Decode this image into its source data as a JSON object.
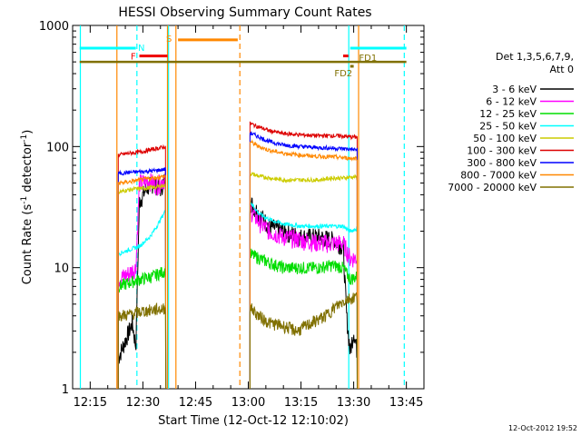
{
  "chart_data": {
    "type": "line",
    "title": "HESSI Observing Summary Count Rates",
    "xlabel": "Start Time (12-Oct-12 12:10:02)",
    "ylabel_main": "Count Rate (s",
    "ylabel_sup1": "-1",
    "ylabel_mid": " detector",
    "ylabel_sup2": "-1",
    "ylabel_end": ")",
    "y_scale": "log",
    "ylim": [
      1,
      1000
    ],
    "xlim_minutes": [
      12.0,
      235.0
    ],
    "x_ticks": [
      {
        "minute": 15,
        "label": "12:15"
      },
      {
        "minute": 30,
        "label": "12:30"
      },
      {
        "minute": 45,
        "label": "12:45"
      },
      {
        "minute": 60,
        "label": "13:00"
      },
      {
        "minute": 75,
        "label": "13:15"
      },
      {
        "minute": 90,
        "label": "13:30"
      },
      {
        "minute": 105,
        "label": "13:45"
      }
    ],
    "y_ticks": [
      {
        "value": 1,
        "label": "1"
      },
      {
        "value": 10,
        "label": "10"
      },
      {
        "value": 100,
        "label": "100"
      },
      {
        "value": 1000,
        "label": "1000"
      }
    ],
    "legend_title_1": "Det 1,3,5,6,7,9,",
    "legend_title_2": "Att 0",
    "legend_placement": "right",
    "series": [
      {
        "name": "3 - 6 keV",
        "color": "#000000",
        "seg1": [
          [
            23,
            1.8
          ],
          [
            25,
            2.5
          ],
          [
            27,
            3.5
          ],
          [
            28,
            2.2
          ],
          [
            29,
            35
          ],
          [
            31,
            45
          ],
          [
            33,
            50
          ],
          [
            35,
            45
          ],
          [
            36.5,
            55
          ]
        ],
        "seg2": [
          [
            60.5,
            35
          ],
          [
            63,
            28
          ],
          [
            66,
            22
          ],
          [
            70,
            20
          ],
          [
            75,
            18
          ],
          [
            80,
            18
          ],
          [
            84,
            17
          ],
          [
            87,
            15
          ],
          [
            88,
            4
          ],
          [
            89,
            2
          ],
          [
            90,
            3
          ],
          [
            91,
            2
          ]
        ]
      },
      {
        "name": "6 - 12 keV",
        "color": "#ff00ff",
        "seg1": [
          [
            23,
            8
          ],
          [
            26,
            9
          ],
          [
            28,
            10
          ],
          [
            29,
            50
          ],
          [
            32,
            52
          ],
          [
            34,
            48
          ],
          [
            36.5,
            55
          ]
        ],
        "seg2": [
          [
            60.5,
            30
          ],
          [
            63,
            24
          ],
          [
            66,
            20
          ],
          [
            70,
            18
          ],
          [
            75,
            17
          ],
          [
            80,
            16
          ],
          [
            84,
            16
          ],
          [
            87,
            16
          ],
          [
            89,
            12
          ],
          [
            91,
            12
          ]
        ]
      },
      {
        "name": "12 - 25 keV",
        "color": "#00dd00",
        "seg1": [
          [
            23,
            7
          ],
          [
            26,
            7.5
          ],
          [
            29,
            8
          ],
          [
            33,
            8.5
          ],
          [
            36.5,
            9.5
          ]
        ],
        "seg2": [
          [
            60.5,
            13
          ],
          [
            63,
            12
          ],
          [
            66,
            11
          ],
          [
            70,
            10
          ],
          [
            75,
            10
          ],
          [
            80,
            10
          ],
          [
            84,
            10.5
          ],
          [
            87,
            10
          ],
          [
            89,
            8
          ],
          [
            91,
            8.5
          ]
        ]
      },
      {
        "name": "25 - 50 keV",
        "color": "#00ffff",
        "seg1": [
          [
            23,
            13
          ],
          [
            26,
            14
          ],
          [
            29,
            15
          ],
          [
            32,
            18
          ],
          [
            34,
            22
          ],
          [
            36.5,
            30
          ]
        ],
        "seg2": [
          [
            60.5,
            35
          ],
          [
            63,
            28
          ],
          [
            66,
            25
          ],
          [
            70,
            23
          ],
          [
            75,
            22
          ],
          [
            80,
            22
          ],
          [
            84,
            22
          ],
          [
            87,
            22
          ],
          [
            89,
            20
          ],
          [
            91,
            21
          ]
        ]
      },
      {
        "name": "50 - 100 keV",
        "color": "#cccc00",
        "seg1": [
          [
            23,
            42
          ],
          [
            26,
            44
          ],
          [
            29,
            45
          ],
          [
            33,
            46
          ],
          [
            36.5,
            48
          ]
        ],
        "seg2": [
          [
            60.5,
            60
          ],
          [
            63,
            57
          ],
          [
            66,
            55
          ],
          [
            70,
            53
          ],
          [
            75,
            53
          ],
          [
            80,
            53
          ],
          [
            84,
            55
          ],
          [
            87,
            55
          ],
          [
            89,
            56
          ],
          [
            91,
            56
          ]
        ]
      },
      {
        "name": "100 - 300 keV",
        "color": "#dd0000",
        "seg1": [
          [
            23,
            85
          ],
          [
            26,
            88
          ],
          [
            29,
            90
          ],
          [
            33,
            95
          ],
          [
            36.5,
            100
          ]
        ],
        "seg2": [
          [
            60.5,
            155
          ],
          [
            63,
            145
          ],
          [
            66,
            135
          ],
          [
            70,
            128
          ],
          [
            75,
            125
          ],
          [
            80,
            123
          ],
          [
            84,
            123
          ],
          [
            87,
            122
          ],
          [
            89,
            120
          ],
          [
            91,
            120
          ]
        ]
      },
      {
        "name": "300 - 800 keV",
        "color": "#0000ff",
        "seg1": [
          [
            23,
            60
          ],
          [
            26,
            61
          ],
          [
            29,
            62
          ],
          [
            33,
            63
          ],
          [
            36.5,
            65
          ]
        ],
        "seg2": [
          [
            60.5,
            130
          ],
          [
            63,
            120
          ],
          [
            66,
            110
          ],
          [
            70,
            103
          ],
          [
            75,
            100
          ],
          [
            80,
            98
          ],
          [
            84,
            97
          ],
          [
            87,
            96
          ],
          [
            89,
            95
          ],
          [
            91,
            94
          ]
        ]
      },
      {
        "name": "800 - 7000 keV",
        "color": "#ff8800",
        "seg1": [
          [
            23,
            50
          ],
          [
            26,
            51
          ],
          [
            29,
            53
          ],
          [
            33,
            55
          ],
          [
            36.5,
            57
          ]
        ],
        "seg2": [
          [
            60.5,
            110
          ],
          [
            63,
            100
          ],
          [
            66,
            93
          ],
          [
            70,
            88
          ],
          [
            75,
            85
          ],
          [
            80,
            83
          ],
          [
            84,
            82
          ],
          [
            87,
            81
          ],
          [
            89,
            80
          ],
          [
            91,
            80
          ]
        ]
      },
      {
        "name": "7000 - 20000 keV",
        "color": "#807000",
        "seg1": [
          [
            23,
            4
          ],
          [
            26,
            4.1
          ],
          [
            29,
            4.3
          ],
          [
            33,
            4.5
          ],
          [
            36.5,
            4.6
          ]
        ],
        "seg2": [
          [
            60.5,
            4.7
          ],
          [
            63,
            4.0
          ],
          [
            66,
            3.5
          ],
          [
            70,
            3.3
          ],
          [
            74,
            3.0
          ],
          [
            78,
            3.5
          ],
          [
            82,
            4.0
          ],
          [
            85,
            4.8
          ],
          [
            88,
            5.5
          ],
          [
            91,
            5.8
          ]
        ]
      }
    ],
    "flags": [
      {
        "label": "N",
        "color": "#00ffff",
        "y": 650,
        "ranges": [
          [
            12,
            28
          ],
          [
            89,
            105
          ]
        ]
      },
      {
        "label": "F",
        "color": "#ee0000",
        "y": 560,
        "ranges": [
          [
            29,
            37
          ],
          [
            87,
            88.5
          ]
        ]
      },
      {
        "label": "S",
        "color": "#ff8800",
        "y": 760,
        "ranges": [
          [
            40,
            57
          ]
        ]
      },
      {
        "label": "FD1",
        "color": "#807000",
        "y": 500,
        "ranges": [
          [
            12,
            105
          ]
        ]
      },
      {
        "label": "FD2",
        "color": "#807000",
        "y": 460,
        "ranges": [
          [
            89,
            90
          ]
        ]
      }
    ],
    "v_lines": [
      {
        "minute": 12.2,
        "color": "#00ffff",
        "dash": false
      },
      {
        "minute": 28.3,
        "color": "#00ffff",
        "dash": true
      },
      {
        "minute": 37.3,
        "color": "#00ffff",
        "dash": false
      },
      {
        "minute": 39.4,
        "color": "#ff8800",
        "dash": false
      },
      {
        "minute": 57.6,
        "color": "#ff8800",
        "dash": true
      },
      {
        "minute": 88.6,
        "color": "#00ffff",
        "dash": false
      },
      {
        "minute": 91.4,
        "color": "#ff8800",
        "dash": false
      },
      {
        "minute": 104.4,
        "color": "#00ffff",
        "dash": true
      },
      {
        "minute": 22.6,
        "color": "#ff8800",
        "dash": false
      },
      {
        "minute": 37.0,
        "color": "#ff8800",
        "dash": false
      }
    ],
    "footer_stamp": "12-Oct-2012 19:52"
  }
}
